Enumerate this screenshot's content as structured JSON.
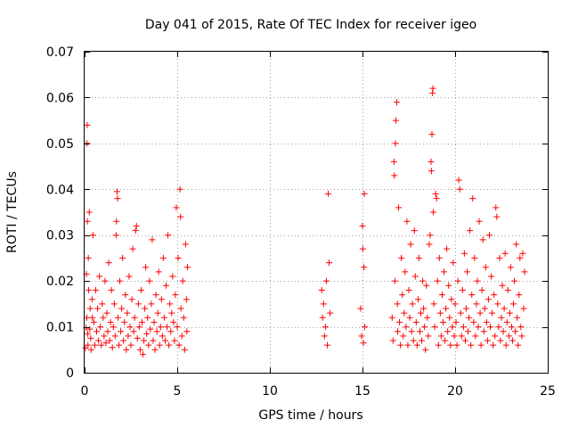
{
  "chart_data": {
    "type": "scatter",
    "title": "Day 041 of 2015, Rate Of TEC Index for receiver igeo",
    "xlabel": "GPS time / hours",
    "ylabel": "ROTI / TECUs",
    "xlim": [
      0,
      25
    ],
    "ylim": [
      0,
      0.07
    ],
    "grid": true,
    "marker": "+",
    "marker_color": "#ff0000",
    "x_ticks": [
      {
        "value": 0,
        "label": "0"
      },
      {
        "value": 5,
        "label": "5"
      },
      {
        "value": 10,
        "label": "10"
      },
      {
        "value": 15,
        "label": "15"
      },
      {
        "value": 20,
        "label": "20"
      },
      {
        "value": 25,
        "label": "25"
      }
    ],
    "y_ticks": [
      {
        "value": 0,
        "label": "0"
      },
      {
        "value": 0.01,
        "label": "0.01"
      },
      {
        "value": 0.02,
        "label": "0.02"
      },
      {
        "value": 0.03,
        "label": "0.03"
      },
      {
        "value": 0.04,
        "label": "0.04"
      },
      {
        "value": 0.05,
        "label": "0.05"
      },
      {
        "value": 0.06,
        "label": "0.06"
      },
      {
        "value": 0.07,
        "label": "0.07"
      }
    ],
    "series": [
      {
        "name": "ROTI",
        "points": [
          [
            0.05,
            0.0054
          ],
          [
            0.08,
            0.0098
          ],
          [
            0.1,
            0.0215
          ],
          [
            0.12,
            0.012
          ],
          [
            0.13,
            0.05
          ],
          [
            0.14,
            0.054
          ],
          [
            0.15,
            0.033
          ],
          [
            0.17,
            0.0085
          ],
          [
            0.18,
            0.006
          ],
          [
            0.2,
            0.025
          ],
          [
            0.22,
            0.018
          ],
          [
            0.25,
            0.035
          ],
          [
            0.28,
            0.0095
          ],
          [
            0.3,
            0.014
          ],
          [
            0.33,
            0.0075
          ],
          [
            0.35,
            0.005
          ],
          [
            0.4,
            0.016
          ],
          [
            0.42,
            0.012
          ],
          [
            0.45,
            0.03
          ],
          [
            0.5,
            0.011
          ],
          [
            0.55,
            0.006
          ],
          [
            0.6,
            0.018
          ],
          [
            0.65,
            0.009
          ],
          [
            0.7,
            0.014
          ],
          [
            0.75,
            0.007
          ],
          [
            0.8,
            0.021
          ],
          [
            0.85,
            0.01
          ],
          [
            0.9,
            0.006
          ],
          [
            0.95,
            0.015
          ],
          [
            1.0,
            0.012
          ],
          [
            1.05,
            0.008
          ],
          [
            1.1,
            0.02
          ],
          [
            1.15,
            0.0065
          ],
          [
            1.2,
            0.013
          ],
          [
            1.25,
            0.009
          ],
          [
            1.3,
            0.024
          ],
          [
            1.35,
            0.007
          ],
          [
            1.4,
            0.011
          ],
          [
            1.45,
            0.018
          ],
          [
            1.5,
            0.0055
          ],
          [
            1.55,
            0.01
          ],
          [
            1.6,
            0.015
          ],
          [
            1.65,
            0.008
          ],
          [
            1.7,
            0.03
          ],
          [
            1.72,
            0.033
          ],
          [
            1.75,
            0.0395
          ],
          [
            1.78,
            0.038
          ],
          [
            1.8,
            0.012
          ],
          [
            1.85,
            0.006
          ],
          [
            1.9,
            0.02
          ],
          [
            1.95,
            0.009
          ],
          [
            2.0,
            0.014
          ],
          [
            2.05,
            0.025
          ],
          [
            2.1,
            0.007
          ],
          [
            2.15,
            0.011
          ],
          [
            2.2,
            0.017
          ],
          [
            2.25,
            0.005
          ],
          [
            2.3,
            0.013
          ],
          [
            2.35,
            0.008
          ],
          [
            2.4,
            0.021
          ],
          [
            2.45,
            0.01
          ],
          [
            2.5,
            0.006
          ],
          [
            2.55,
            0.016
          ],
          [
            2.6,
            0.027
          ],
          [
            2.65,
            0.009
          ],
          [
            2.7,
            0.012
          ],
          [
            2.75,
            0.031
          ],
          [
            2.8,
            0.032
          ],
          [
            2.85,
            0.0075
          ],
          [
            2.9,
            0.015
          ],
          [
            2.95,
            0.01
          ],
          [
            3.0,
            0.005
          ],
          [
            3.05,
            0.018
          ],
          [
            3.1,
            0.011
          ],
          [
            3.15,
            0.004
          ],
          [
            3.2,
            0.007
          ],
          [
            3.25,
            0.014
          ],
          [
            3.3,
            0.023
          ],
          [
            3.35,
            0.0085
          ],
          [
            3.4,
            0.012
          ],
          [
            3.45,
            0.006
          ],
          [
            3.5,
            0.02
          ],
          [
            3.55,
            0.0095
          ],
          [
            3.6,
            0.015
          ],
          [
            3.65,
            0.029
          ],
          [
            3.7,
            0.007
          ],
          [
            3.75,
            0.011
          ],
          [
            3.8,
            0.005
          ],
          [
            3.85,
            0.017
          ],
          [
            3.9,
            0.009
          ],
          [
            3.95,
            0.013
          ],
          [
            4.0,
            0.022
          ],
          [
            4.05,
            0.006
          ],
          [
            4.1,
            0.01
          ],
          [
            4.15,
            0.016
          ],
          [
            4.2,
            0.008
          ],
          [
            4.25,
            0.025
          ],
          [
            4.3,
            0.012
          ],
          [
            4.35,
            0.007
          ],
          [
            4.4,
            0.019
          ],
          [
            4.45,
            0.01
          ],
          [
            4.5,
            0.03
          ],
          [
            4.55,
            0.006
          ],
          [
            4.6,
            0.015
          ],
          [
            4.65,
            0.009
          ],
          [
            4.7,
            0.013
          ],
          [
            4.75,
            0.021
          ],
          [
            4.8,
            0.011
          ],
          [
            4.85,
            0.007
          ],
          [
            4.9,
            0.017
          ],
          [
            4.95,
            0.036
          ],
          [
            5.0,
            0.01
          ],
          [
            5.05,
            0.025
          ],
          [
            5.1,
            0.006
          ],
          [
            5.15,
            0.04
          ],
          [
            5.18,
            0.034
          ],
          [
            5.2,
            0.014
          ],
          [
            5.25,
            0.008
          ],
          [
            5.3,
            0.02
          ],
          [
            5.35,
            0.012
          ],
          [
            5.4,
            0.005
          ],
          [
            5.45,
            0.028
          ],
          [
            5.5,
            0.016
          ],
          [
            5.52,
            0.009
          ],
          [
            5.55,
            0.023
          ],
          [
            12.8,
            0.018
          ],
          [
            12.85,
            0.012
          ],
          [
            12.9,
            0.015
          ],
          [
            12.95,
            0.008
          ],
          [
            13.0,
            0.01
          ],
          [
            13.05,
            0.02
          ],
          [
            13.1,
            0.006
          ],
          [
            13.15,
            0.039
          ],
          [
            13.2,
            0.024
          ],
          [
            13.25,
            0.013
          ],
          [
            14.9,
            0.014
          ],
          [
            14.95,
            0.008
          ],
          [
            15.0,
            0.032
          ],
          [
            15.02,
            0.027
          ],
          [
            15.05,
            0.0065
          ],
          [
            15.08,
            0.023
          ],
          [
            15.1,
            0.039
          ],
          [
            15.12,
            0.01
          ],
          [
            16.6,
            0.012
          ],
          [
            16.65,
            0.007
          ],
          [
            16.7,
            0.046
          ],
          [
            16.72,
            0.043
          ],
          [
            16.75,
            0.02
          ],
          [
            16.78,
            0.05
          ],
          [
            16.8,
            0.055
          ],
          [
            16.85,
            0.059
          ],
          [
            16.88,
            0.015
          ],
          [
            16.9,
            0.009
          ],
          [
            16.95,
            0.036
          ],
          [
            17.0,
            0.011
          ],
          [
            17.05,
            0.006
          ],
          [
            17.1,
            0.025
          ],
          [
            17.15,
            0.017
          ],
          [
            17.2,
            0.008
          ],
          [
            17.25,
            0.013
          ],
          [
            17.3,
            0.022
          ],
          [
            17.35,
            0.01
          ],
          [
            17.4,
            0.033
          ],
          [
            17.45,
            0.006
          ],
          [
            17.5,
            0.018
          ],
          [
            17.55,
            0.012
          ],
          [
            17.6,
            0.028
          ],
          [
            17.65,
            0.009
          ],
          [
            17.7,
            0.015
          ],
          [
            17.75,
            0.007
          ],
          [
            17.8,
            0.031
          ],
          [
            17.85,
            0.021
          ],
          [
            17.9,
            0.011
          ],
          [
            17.95,
            0.006
          ],
          [
            18.0,
            0.016
          ],
          [
            18.05,
            0.025
          ],
          [
            18.1,
            0.009
          ],
          [
            18.15,
            0.013
          ],
          [
            18.2,
            0.007
          ],
          [
            18.25,
            0.02
          ],
          [
            18.3,
            0.014
          ],
          [
            18.35,
            0.01
          ],
          [
            18.4,
            0.005
          ],
          [
            18.45,
            0.019
          ],
          [
            18.5,
            0.012
          ],
          [
            18.55,
            0.008
          ],
          [
            18.6,
            0.028
          ],
          [
            18.65,
            0.03
          ],
          [
            18.7,
            0.046
          ],
          [
            18.72,
            0.044
          ],
          [
            18.75,
            0.052
          ],
          [
            18.78,
            0.061
          ],
          [
            18.8,
            0.062
          ],
          [
            18.82,
            0.035
          ],
          [
            18.85,
            0.015
          ],
          [
            18.9,
            0.01
          ],
          [
            18.95,
            0.039
          ],
          [
            19.0,
            0.038
          ],
          [
            19.05,
            0.02
          ],
          [
            19.1,
            0.006
          ],
          [
            19.15,
            0.025
          ],
          [
            19.2,
            0.013
          ],
          [
            19.25,
            0.008
          ],
          [
            19.3,
            0.017
          ],
          [
            19.35,
            0.011
          ],
          [
            19.4,
            0.022
          ],
          [
            19.45,
            0.007
          ],
          [
            19.5,
            0.014
          ],
          [
            19.55,
            0.027
          ],
          [
            19.6,
            0.009
          ],
          [
            19.65,
            0.019
          ],
          [
            19.7,
            0.012
          ],
          [
            19.75,
            0.006
          ],
          [
            19.8,
            0.016
          ],
          [
            19.85,
            0.01
          ],
          [
            19.9,
            0.024
          ],
          [
            19.95,
            0.008
          ],
          [
            20.0,
            0.015
          ],
          [
            20.05,
            0.011
          ],
          [
            20.1,
            0.006
          ],
          [
            20.15,
            0.02
          ],
          [
            20.2,
            0.042
          ],
          [
            20.25,
            0.04
          ],
          [
            20.3,
            0.013
          ],
          [
            20.35,
            0.008
          ],
          [
            20.4,
            0.018
          ],
          [
            20.45,
            0.01
          ],
          [
            20.5,
            0.026
          ],
          [
            20.55,
            0.007
          ],
          [
            20.6,
            0.014
          ],
          [
            20.65,
            0.022
          ],
          [
            20.7,
            0.009
          ],
          [
            20.75,
            0.012
          ],
          [
            20.8,
            0.031
          ],
          [
            20.85,
            0.006
          ],
          [
            20.9,
            0.017
          ],
          [
            20.95,
            0.038
          ],
          [
            21.0,
            0.011
          ],
          [
            21.05,
            0.025
          ],
          [
            21.1,
            0.008
          ],
          [
            21.15,
            0.015
          ],
          [
            21.2,
            0.02
          ],
          [
            21.25,
            0.01
          ],
          [
            21.3,
            0.033
          ],
          [
            21.35,
            0.013
          ],
          [
            21.4,
            0.006
          ],
          [
            21.45,
            0.018
          ],
          [
            21.5,
            0.029
          ],
          [
            21.55,
            0.009
          ],
          [
            21.6,
            0.014
          ],
          [
            21.65,
            0.023
          ],
          [
            21.7,
            0.011
          ],
          [
            21.75,
            0.007
          ],
          [
            21.8,
            0.016
          ],
          [
            21.85,
            0.03
          ],
          [
            21.9,
            0.01
          ],
          [
            21.95,
            0.021
          ],
          [
            22.0,
            0.013
          ],
          [
            22.05,
            0.006
          ],
          [
            22.1,
            0.017
          ],
          [
            22.15,
            0.008
          ],
          [
            22.2,
            0.036
          ],
          [
            22.25,
            0.034
          ],
          [
            22.3,
            0.015
          ],
          [
            22.35,
            0.01
          ],
          [
            22.4,
            0.025
          ],
          [
            22.45,
            0.007
          ],
          [
            22.5,
            0.012
          ],
          [
            22.55,
            0.019
          ],
          [
            22.6,
            0.009
          ],
          [
            22.65,
            0.014
          ],
          [
            22.7,
            0.026
          ],
          [
            22.75,
            0.006
          ],
          [
            22.8,
            0.011
          ],
          [
            22.85,
            0.018
          ],
          [
            22.9,
            0.008
          ],
          [
            22.95,
            0.013
          ],
          [
            23.0,
            0.023
          ],
          [
            23.05,
            0.01
          ],
          [
            23.1,
            0.007
          ],
          [
            23.15,
            0.015
          ],
          [
            23.2,
            0.02
          ],
          [
            23.25,
            0.009
          ],
          [
            23.3,
            0.028
          ],
          [
            23.35,
            0.012
          ],
          [
            23.4,
            0.006
          ],
          [
            23.45,
            0.017
          ],
          [
            23.5,
            0.025
          ],
          [
            23.55,
            0.01
          ],
          [
            23.6,
            0.008
          ],
          [
            23.65,
            0.026
          ],
          [
            23.7,
            0.014
          ],
          [
            23.75,
            0.022
          ]
        ]
      }
    ]
  }
}
